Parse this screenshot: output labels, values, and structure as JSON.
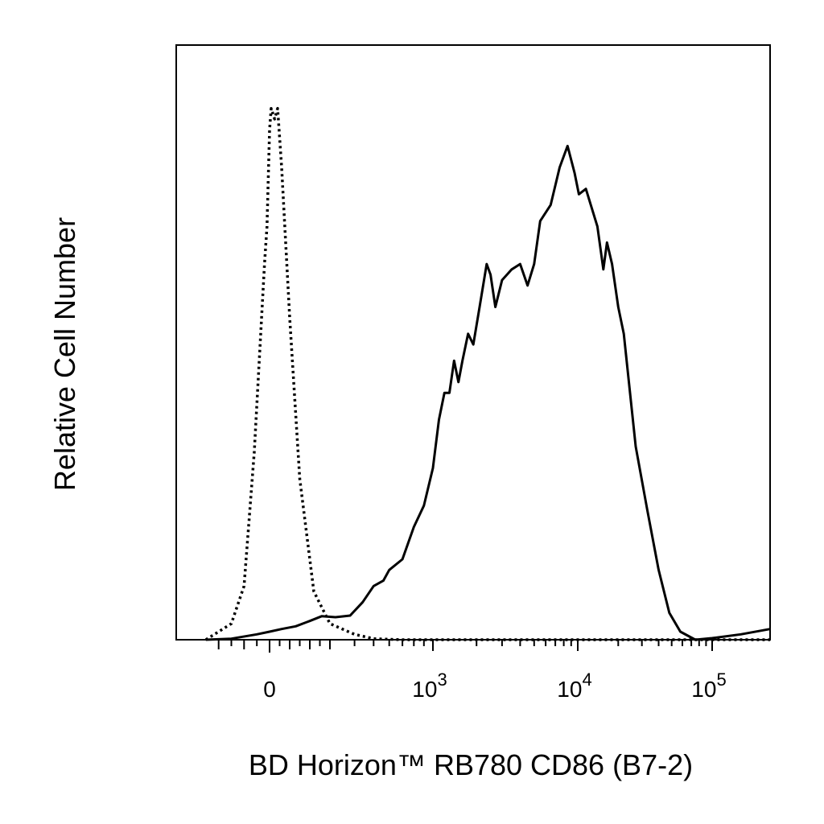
{
  "chart_data": {
    "type": "line",
    "title": "",
    "xlabel": "BD Horizon™ RB780 CD86 (B7-2)",
    "ylabel": "Relative Cell Number",
    "x_scale": "biexponential",
    "x_range": [
      -300,
      170000
    ],
    "y_range": [
      0,
      100
    ],
    "grid": false,
    "legend": "none",
    "x_tick_labels": [
      {
        "value": 0,
        "base": "0",
        "exp": ""
      },
      {
        "value": 1000,
        "base": "10",
        "exp": "3"
      },
      {
        "value": 10000,
        "base": "10",
        "exp": "4"
      },
      {
        "value": 100000,
        "base": "10",
        "exp": "5"
      }
    ],
    "series": [
      {
        "style": "dotted",
        "points": [
          [
            -250,
            0
          ],
          [
            -150,
            3
          ],
          [
            -100,
            10
          ],
          [
            -60,
            35
          ],
          [
            -20,
            70
          ],
          [
            -10,
            77
          ],
          [
            0,
            95
          ],
          [
            8,
            99
          ],
          [
            25,
            97
          ],
          [
            40,
            99
          ],
          [
            60,
            88
          ],
          [
            100,
            60
          ],
          [
            150,
            30
          ],
          [
            220,
            9
          ],
          [
            300,
            3
          ],
          [
            400,
            1
          ],
          [
            500,
            0.2
          ],
          [
            700,
            0
          ],
          [
            1000,
            0
          ],
          [
            10000,
            0
          ],
          [
            100000,
            0
          ],
          [
            170000,
            0
          ]
        ]
      },
      {
        "style": "solid",
        "points": [
          [
            -250,
            0
          ],
          [
            -150,
            0.2
          ],
          [
            -50,
            1
          ],
          [
            0,
            1.5
          ],
          [
            60,
            2
          ],
          [
            130,
            2.5
          ],
          [
            200,
            3.5
          ],
          [
            260,
            4.4
          ],
          [
            320,
            4.2
          ],
          [
            380,
            4.5
          ],
          [
            440,
            7
          ],
          [
            500,
            10
          ],
          [
            560,
            11
          ],
          [
            600,
            13
          ],
          [
            700,
            15
          ],
          [
            800,
            21
          ],
          [
            900,
            25
          ],
          [
            1000,
            32
          ],
          [
            1100,
            41
          ],
          [
            1200,
            46
          ],
          [
            1300,
            46
          ],
          [
            1400,
            52
          ],
          [
            1500,
            48
          ],
          [
            1600,
            52
          ],
          [
            1750,
            57
          ],
          [
            1900,
            55
          ],
          [
            2100,
            62
          ],
          [
            2350,
            70
          ],
          [
            2500,
            68
          ],
          [
            2700,
            62
          ],
          [
            3000,
            67
          ],
          [
            3500,
            69
          ],
          [
            4000,
            70
          ],
          [
            4500,
            66
          ],
          [
            5000,
            70
          ],
          [
            5500,
            78
          ],
          [
            6500,
            81
          ],
          [
            7500,
            88
          ],
          [
            8500,
            92
          ],
          [
            9500,
            87
          ],
          [
            10200,
            83
          ],
          [
            11500,
            84
          ],
          [
            12500,
            81
          ],
          [
            14000,
            77
          ],
          [
            15500,
            69
          ],
          [
            16500,
            74
          ],
          [
            18000,
            70
          ],
          [
            20000,
            62
          ],
          [
            22000,
            57
          ],
          [
            27000,
            36
          ],
          [
            33000,
            24
          ],
          [
            40000,
            13
          ],
          [
            48000,
            5
          ],
          [
            58000,
            1.5
          ],
          [
            75000,
            0
          ],
          [
            100000,
            0.3
          ],
          [
            130000,
            1
          ],
          [
            170000,
            2
          ]
        ]
      }
    ]
  }
}
